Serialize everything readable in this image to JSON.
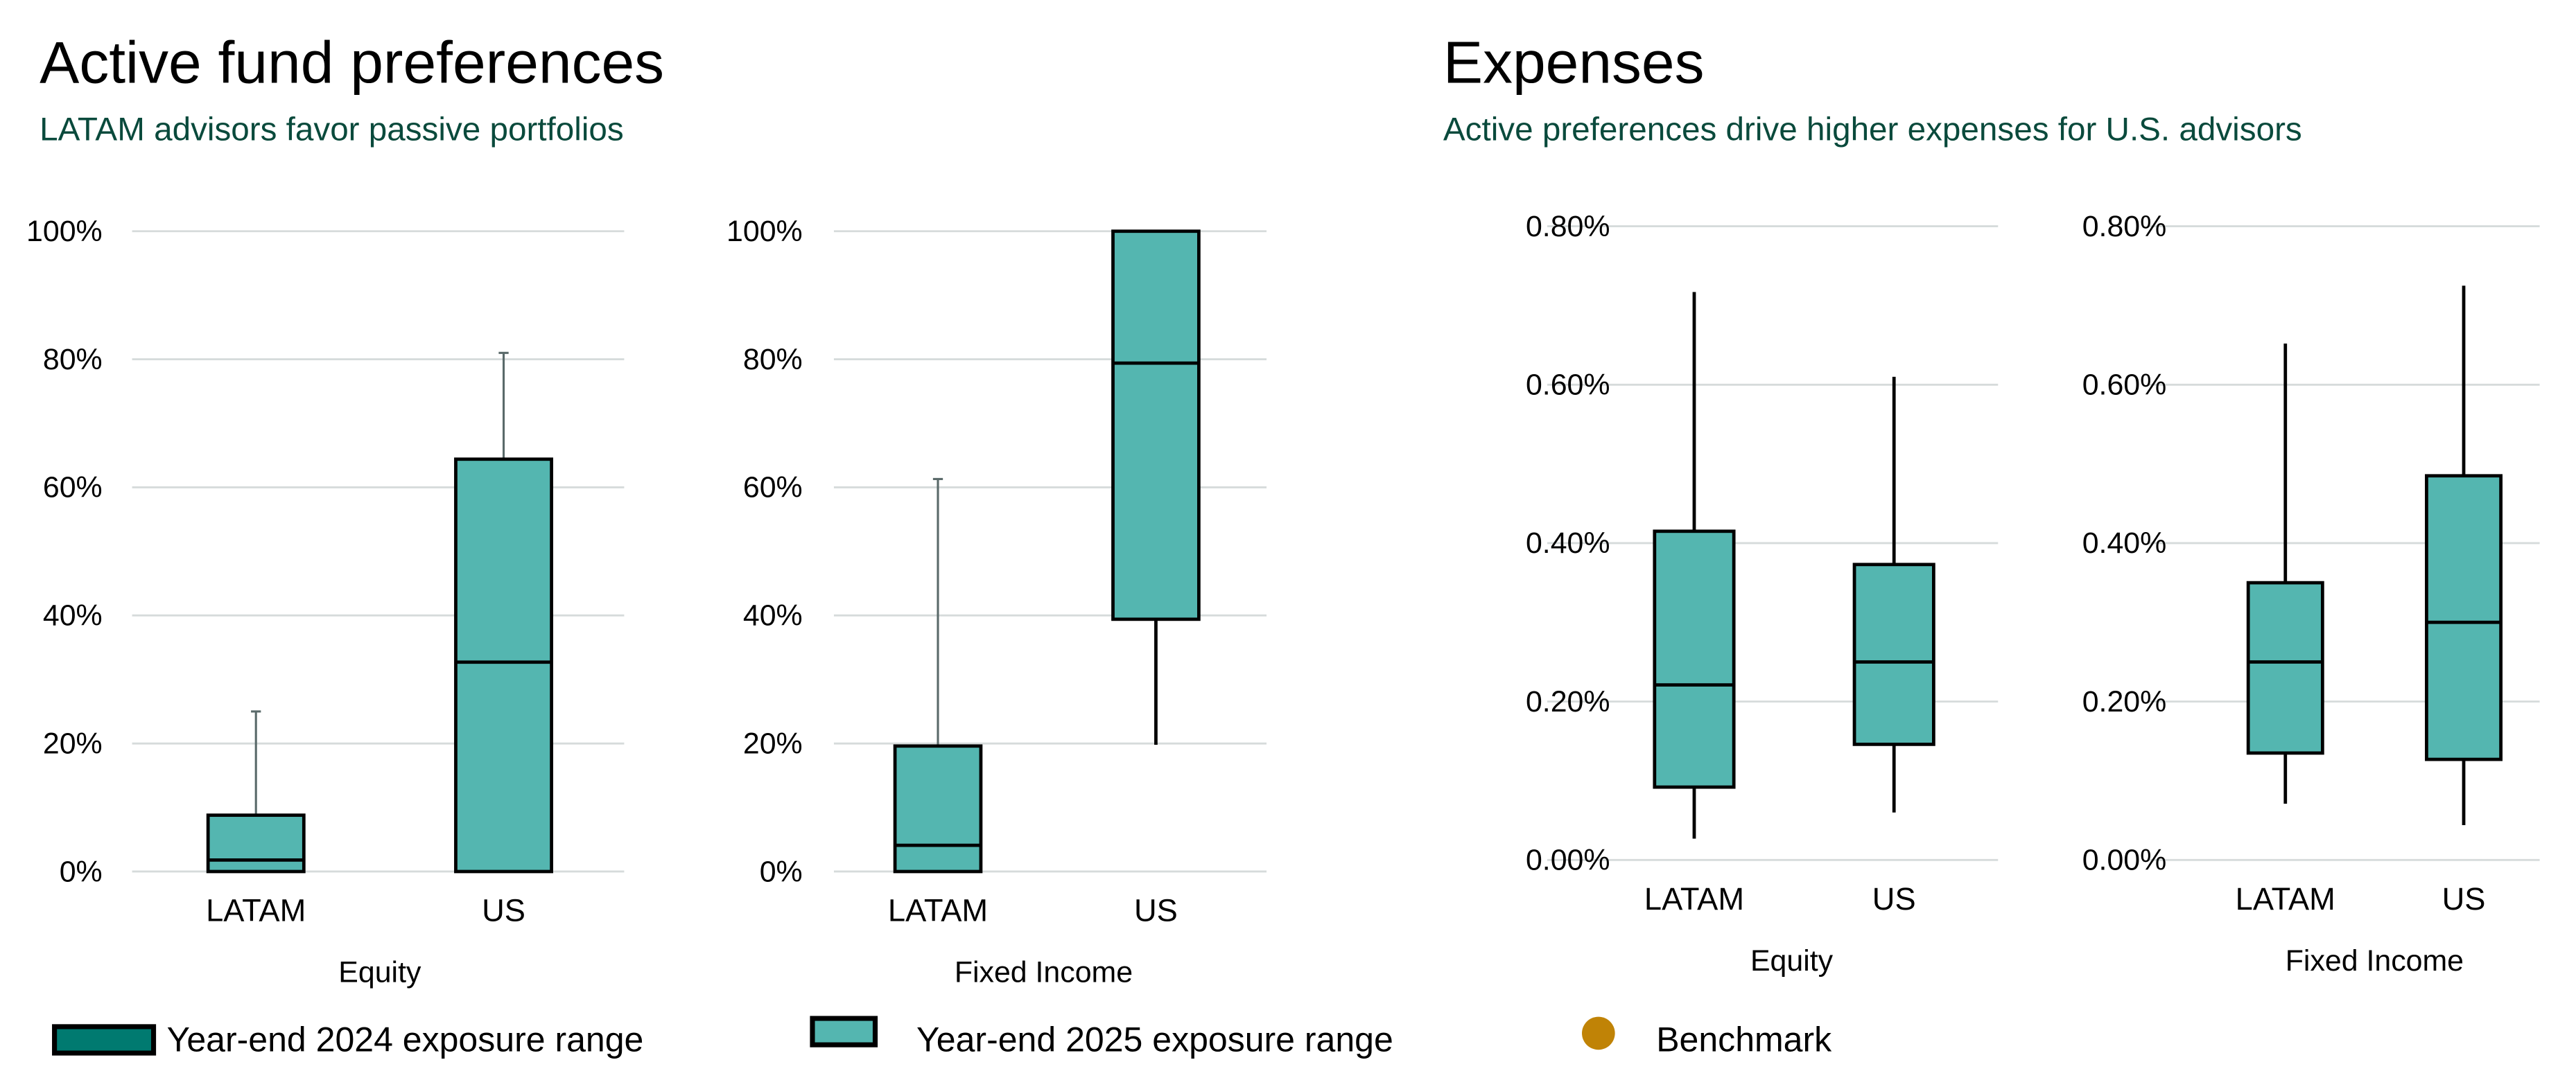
{
  "left_panel": {
    "title": "Active fund preferences",
    "subtitle": "LATAM advisors favor passive portfolios"
  },
  "right_panel": {
    "title": "Expenses",
    "subtitle": "Active preferences drive higher expenses for U.S. advisors"
  },
  "legend": [
    {
      "label": "Year-end 2024 exposure range",
      "color": "#007a70"
    },
    {
      "label": "Year-end 2025 exposure range",
      "color": "#54b6b0"
    },
    {
      "label": "Benchmark",
      "color": "#c08306"
    }
  ],
  "chart_data": [
    {
      "type": "boxplot",
      "xlabel": "Equity",
      "ylim": [
        0,
        100
      ],
      "yticks": [
        "0%",
        "20%",
        "40%",
        "60%",
        "80%",
        "100%"
      ],
      "ytick_values": [
        0,
        20,
        40,
        60,
        80,
        100
      ],
      "grid": true,
      "box_color": "#54b6b0",
      "categories": [
        "LATAM",
        "US"
      ],
      "boxes": [
        {
          "min": 0,
          "q1": 0,
          "median": 1.8,
          "q3": 8.8,
          "max": 25
        },
        {
          "min": 0,
          "q1": 0,
          "median": 32.7,
          "q3": 64.4,
          "max": 81
        }
      ]
    },
    {
      "type": "boxplot",
      "xlabel": "Fixed Income",
      "ylim": [
        0,
        100
      ],
      "yticks": [
        "0%",
        "20%",
        "40%",
        "60%",
        "80%",
        "100%"
      ],
      "ytick_values": [
        0,
        20,
        40,
        60,
        80,
        100
      ],
      "grid": true,
      "box_color": "#54b6b0",
      "categories": [
        "LATAM",
        "US"
      ],
      "boxes": [
        {
          "min": 0,
          "q1": 0,
          "median": 4.1,
          "q3": 19.6,
          "max": 61.3
        },
        {
          "min": 19.8,
          "q1": 39.4,
          "median": 79.4,
          "q3": 100,
          "max": 100
        }
      ]
    },
    {
      "type": "boxplot",
      "xlabel": "Equity",
      "ylim": [
        0,
        0.8
      ],
      "yticks": [
        "0.00%",
        "0.20%",
        "0.40%",
        "0.60%",
        "0.80%"
      ],
      "ytick_values": [
        0,
        0.2,
        0.4,
        0.6,
        0.8
      ],
      "grid": true,
      "box_color": "#54b6b0",
      "categories": [
        "LATAM",
        "US"
      ],
      "boxes": [
        {
          "min": 0.027,
          "q1": 0.092,
          "median": 0.221,
          "q3": 0.415,
          "max": 0.717
        },
        {
          "min": 0.06,
          "q1": 0.146,
          "median": 0.25,
          "q3": 0.373,
          "max": 0.61
        }
      ]
    },
    {
      "type": "boxplot",
      "xlabel": "Fixed Income",
      "ylim": [
        0,
        0.8
      ],
      "yticks": [
        "0.00%",
        "0.20%",
        "0.40%",
        "0.60%",
        "0.80%"
      ],
      "ytick_values": [
        0,
        0.2,
        0.4,
        0.6,
        0.8
      ],
      "grid": true,
      "box_color": "#54b6b0",
      "categories": [
        "LATAM",
        "US"
      ],
      "boxes": [
        {
          "min": 0.071,
          "q1": 0.135,
          "median": 0.25,
          "q3": 0.35,
          "max": 0.652
        },
        {
          "min": 0.044,
          "q1": 0.127,
          "median": 0.3,
          "q3": 0.485,
          "max": 0.725
        }
      ]
    }
  ]
}
